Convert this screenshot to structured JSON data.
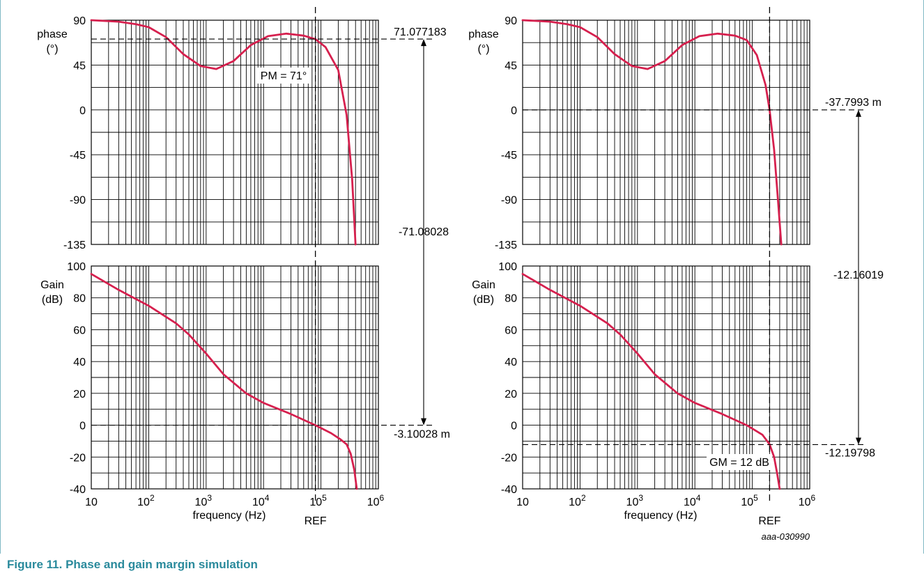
{
  "caption": "Figure 11.  Phase and gain margin simulation",
  "figure_code": "aaa-030990",
  "colors": {
    "curve": "#d6204e",
    "grid": "#000000",
    "caption": "#2a8a9c",
    "frame": "#7fb8c4"
  },
  "chart_data": [
    {
      "type": "line",
      "id": "left-phase",
      "ylabel": [
        "phase",
        "(°)"
      ],
      "ylim": [
        -135,
        90
      ],
      "yticks": [
        90,
        45,
        0,
        -45,
        -90,
        -135
      ],
      "x_scale": "log",
      "xlim": [
        10,
        1000000
      ],
      "ref_freq": 80000,
      "series": [
        {
          "x": [
            10,
            30,
            60,
            100,
            200,
            400,
            800,
            1500,
            3000,
            6000,
            12000,
            25000,
            50000,
            80000,
            120000,
            200000,
            280000,
            350000,
            400000
          ],
          "y": [
            90,
            88.5,
            86,
            83,
            73,
            56,
            44,
            41,
            49,
            65,
            74,
            76.5,
            74.5,
            71,
            63,
            40,
            -5,
            -70,
            -135
          ]
        }
      ],
      "marker_line": {
        "y": 71.077183,
        "label": "71.077183"
      },
      "annotation": "PM = 71°"
    },
    {
      "type": "line",
      "id": "left-gain",
      "ylabel": [
        "Gain",
        "(dB)"
      ],
      "ylim": [
        -40,
        100
      ],
      "yticks": [
        100,
        80,
        60,
        40,
        20,
        0,
        -20,
        -40
      ],
      "x_scale": "log",
      "xlim": [
        10,
        1000000
      ],
      "xticks": [
        "10",
        "10|2",
        "10|3",
        "10|4",
        "10|5",
        "10|6"
      ],
      "xlabel": "frequency (Hz)",
      "ref_label": "REF",
      "ref_freq": 80000,
      "series": [
        {
          "x": [
            10,
            30,
            100,
            300,
            500,
            1000,
            2000,
            5000,
            10000,
            30000,
            80000,
            150000,
            220000,
            280000,
            330000,
            380000,
            420000
          ],
          "y": [
            95,
            85,
            75,
            64,
            57,
            45,
            32,
            20,
            14,
            7,
            0,
            -5,
            -9,
            -12,
            -18,
            -28,
            -40
          ]
        }
      ],
      "marker_line": {
        "y": 0,
        "label": "-3.10028 m"
      }
    },
    {
      "type": "line",
      "id": "right-phase",
      "ylabel": [
        "phase",
        "(°)"
      ],
      "ylim": [
        -135,
        90
      ],
      "yticks": [
        90,
        45,
        0,
        -45,
        -90,
        -135
      ],
      "x_scale": "log",
      "xlim": [
        10,
        1000000
      ],
      "ref_freq": 200000,
      "series": [
        {
          "x": [
            10,
            30,
            60,
            100,
            200,
            400,
            800,
            1500,
            3000,
            6000,
            12000,
            25000,
            50000,
            80000,
            120000,
            170000,
            200000,
            240000,
            280000,
            320000
          ],
          "y": [
            90,
            88.5,
            86,
            83,
            73,
            56,
            44,
            41,
            49,
            65,
            74,
            76.5,
            74.5,
            70,
            55,
            25,
            0,
            -40,
            -90,
            -135
          ]
        }
      ],
      "marker_line": {
        "y": 0,
        "label": "-37.7993 m"
      }
    },
    {
      "type": "line",
      "id": "right-gain",
      "ylabel": [
        "Gain",
        "(dB)"
      ],
      "ylim": [
        -40,
        100
      ],
      "yticks": [
        100,
        80,
        60,
        40,
        20,
        0,
        -20,
        -40
      ],
      "x_scale": "log",
      "xlim": [
        10,
        1000000
      ],
      "xticks": [
        "10",
        "10|2",
        "10|3",
        "10|4",
        "10|5",
        "10|6"
      ],
      "xlabel": "frequency (Hz)",
      "ref_label": "REF",
      "ref_freq": 200000,
      "series": [
        {
          "x": [
            10,
            30,
            100,
            300,
            500,
            1000,
            2000,
            5000,
            10000,
            30000,
            80000,
            150000,
            200000,
            240000,
            270000,
            300000
          ],
          "y": [
            95,
            85,
            75,
            64,
            57,
            45,
            32,
            20,
            14,
            7,
            0,
            -6,
            -12,
            -20,
            -30,
            -40
          ]
        }
      ],
      "marker_line": {
        "y": -12.2,
        "label": "-12.19798"
      },
      "annotation": "GM = 12 dB"
    }
  ],
  "margin_labels": [
    {
      "id": "left",
      "text": "-71.08028"
    },
    {
      "id": "right",
      "text": "-12.16019"
    }
  ]
}
